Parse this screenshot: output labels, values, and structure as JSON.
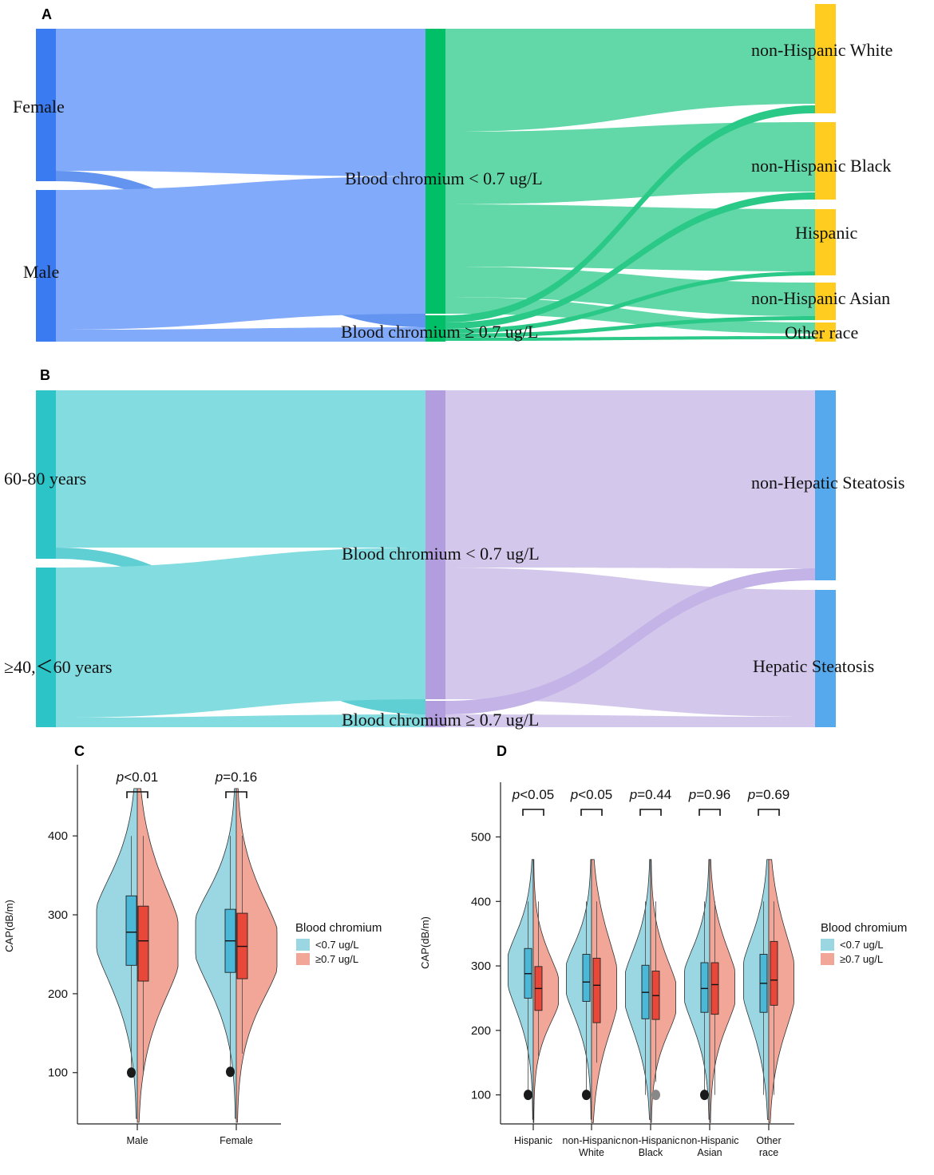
{
  "colors": {
    "female": "#3b7bf2",
    "male": "#3b7bf2",
    "flow_a_left": "#82aafa",
    "mid_a": "#00bf66",
    "flow_a_right": "#62d8a8",
    "race": "#ffcc1f",
    "age": "#2cc4c6",
    "flow_b_left": "#82dce0",
    "mid_b": "#b29ede",
    "flow_b_right": "#d3c8ec",
    "hep": "#56a9ec",
    "violin_low": "#9bd6e3",
    "violin_high": "#f2a697",
    "box_low": "#4bb8d8",
    "box_high": "#e8483a"
  },
  "panel_labels": {
    "a": "A",
    "b": "B",
    "c": "C",
    "d": "D"
  },
  "chart_data": [
    {
      "type": "sankey",
      "panel": "A",
      "nodes": {
        "sex": [
          "Female",
          "Male"
        ],
        "chromium": [
          "Blood chromium < 0.7 ug/L",
          "Blood chromium ≥ 0.7 ug/L"
        ],
        "race": [
          "non-Hispanic White",
          "non-Hispanic Black",
          "Hispanic",
          "non-Hispanic Asian",
          "Other race"
        ]
      }
    },
    {
      "type": "sankey",
      "panel": "B",
      "nodes": {
        "age": [
          "60-80 years",
          "≥40,＜60 years"
        ],
        "chromium": [
          "Blood chromium < 0.7 ug/L",
          "Blood chromium ≥ 0.7 ug/L"
        ],
        "outcome": [
          "non-Hepatic Steatosis",
          "Hepatic Steatosis"
        ]
      }
    },
    {
      "type": "violin",
      "panel": "C",
      "ylabel": "CAP(dB/m)",
      "ylim": [
        35,
        470
      ],
      "yticks": [
        100,
        200,
        300,
        400
      ],
      "categories": [
        "Male",
        "Female"
      ],
      "pvalues": [
        "<0.01",
        "=0.16"
      ],
      "legend_title": "Blood chromium",
      "series": [
        {
          "name": "<0.7 ug/L",
          "stats": [
            {
              "min": 100,
              "q1": 236,
              "median": 278,
              "q3": 324,
              "max": 400,
              "outlier": 100
            },
            {
              "min": 100,
              "q1": 227,
              "median": 267,
              "q3": 307,
              "max": 400,
              "outlier": 101
            }
          ]
        },
        {
          "name": "≥0.7 ug/L",
          "stats": [
            {
              "min": 100,
              "q1": 216,
              "median": 267,
              "q3": 311,
              "max": 400
            },
            {
              "min": 124,
              "q1": 219,
              "median": 260,
              "q3": 302,
              "max": 400
            }
          ]
        }
      ]
    },
    {
      "type": "violin",
      "panel": "D",
      "ylabel": "CAP(dB/m)",
      "ylim": [
        55,
        560
      ],
      "yticks": [
        100,
        200,
        300,
        400,
        500
      ],
      "categories": [
        "Hispanic",
        "non-Hispanic White",
        "non-Hispanic Black",
        "non-Hispanic Asian",
        "Other race"
      ],
      "pvalues": [
        "<0.05",
        "<0.05",
        "=0.44",
        "=0.96",
        "=0.69"
      ],
      "legend_title": "Blood chromium",
      "series": [
        {
          "name": "<0.7 ug/L",
          "stats": [
            {
              "min": 100,
              "q1": 250,
              "median": 288,
              "q3": 327,
              "max": 400,
              "outlier": 100
            },
            {
              "min": 100,
              "q1": 245,
              "median": 275,
              "q3": 318,
              "max": 400,
              "outlier": 100
            },
            {
              "min": 100,
              "q1": 218,
              "median": 259,
              "q3": 301,
              "max": 400
            },
            {
              "min": 100,
              "q1": 228,
              "median": 265,
              "q3": 305,
              "max": 400,
              "outlier": 100
            },
            {
              "min": 100,
              "q1": 228,
              "median": 273,
              "q3": 318,
              "max": 400
            }
          ]
        },
        {
          "name": "≥0.7 ug/L",
          "stats": [
            {
              "min": 160,
              "q1": 231,
              "median": 265,
              "q3": 299,
              "max": 400
            },
            {
              "min": 150,
              "q1": 212,
              "median": 270,
              "q3": 312,
              "max": 400
            },
            {
              "min": 120,
              "q1": 217,
              "median": 254,
              "q3": 292,
              "max": 400,
              "outlier": 100
            },
            {
              "min": 100,
              "q1": 225,
              "median": 271,
              "q3": 305,
              "max": 400
            },
            {
              "min": 100,
              "q1": 239,
              "median": 278,
              "q3": 338,
              "max": 400
            }
          ]
        }
      ]
    }
  ]
}
